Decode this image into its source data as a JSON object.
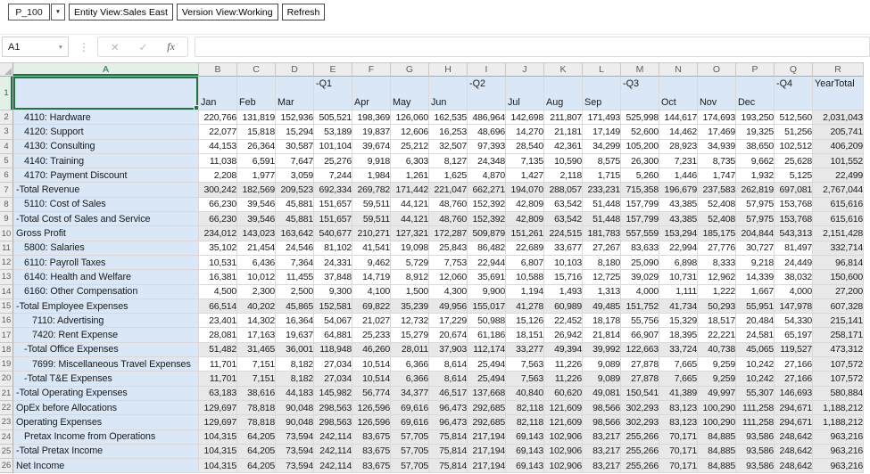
{
  "toolbar": {
    "pov": {
      "value": "P_100",
      "dropdown_icon": "▼"
    },
    "entity_button": "Entity View:Sales East",
    "version_button": "Version View:Working",
    "refresh_button": "Refresh"
  },
  "formula_bar": {
    "name_box_value": "A1",
    "name_dropdown_icon": "▼",
    "cancel_icon": "✕",
    "enter_icon": "✓",
    "fx_icon": "fx",
    "input_value": ""
  },
  "colors": {
    "selection_green": "#217346",
    "member_fill_blue": "#D9E7F6",
    "total_fill_gray": "#E8E8E8",
    "gridline": "#D9D9D9"
  },
  "grid": {
    "column_letters": [
      "A",
      "B",
      "C",
      "D",
      "E",
      "F",
      "G",
      "H",
      "I",
      "J",
      "K",
      "L",
      "M",
      "N",
      "O",
      "P",
      "Q",
      "R"
    ],
    "header_row": {
      "row_number": "1",
      "cells": [
        {
          "col": "B",
          "text": "Jan",
          "valign": "bottom"
        },
        {
          "col": "C",
          "text": "Feb",
          "valign": "bottom"
        },
        {
          "col": "D",
          "text": "Mar",
          "valign": "bottom"
        },
        {
          "col": "E",
          "text": "-Q1",
          "valign": "top"
        },
        {
          "col": "F",
          "text": "Apr",
          "valign": "bottom"
        },
        {
          "col": "G",
          "text": "May",
          "valign": "bottom"
        },
        {
          "col": "H",
          "text": "Jun",
          "valign": "bottom"
        },
        {
          "col": "I",
          "text": "-Q2",
          "valign": "top"
        },
        {
          "col": "J",
          "text": "Jul",
          "valign": "bottom"
        },
        {
          "col": "K",
          "text": "Aug",
          "valign": "bottom"
        },
        {
          "col": "L",
          "text": "Sep",
          "valign": "bottom"
        },
        {
          "col": "M",
          "text": "-Q3",
          "valign": "top"
        },
        {
          "col": "N",
          "text": "Oct",
          "valign": "bottom"
        },
        {
          "col": "O",
          "text": "Nov",
          "valign": "bottom"
        },
        {
          "col": "P",
          "text": "Dec",
          "valign": "bottom"
        },
        {
          "col": "Q",
          "text": "-Q4",
          "valign": "top"
        },
        {
          "col": "R",
          "text": "YearTotal",
          "valign": "top"
        }
      ]
    },
    "rows": [
      {
        "n": "2",
        "label": "4110: Hardware",
        "indent": 1,
        "total": false,
        "values": [
          "220,766",
          "131,819",
          "152,936",
          "505,521",
          "198,369",
          "126,060",
          "162,535",
          "486,964",
          "142,698",
          "211,807",
          "171,493",
          "525,998",
          "144,617",
          "174,693",
          "193,250",
          "512,560",
          "2,031,043"
        ]
      },
      {
        "n": "3",
        "label": "4120: Support",
        "indent": 1,
        "total": false,
        "values": [
          "22,077",
          "15,818",
          "15,294",
          "53,189",
          "19,837",
          "12,606",
          "16,253",
          "48,696",
          "14,270",
          "21,181",
          "17,149",
          "52,600",
          "14,462",
          "17,469",
          "19,325",
          "51,256",
          "205,741"
        ]
      },
      {
        "n": "4",
        "label": "4130: Consulting",
        "indent": 1,
        "total": false,
        "values": [
          "44,153",
          "26,364",
          "30,587",
          "101,104",
          "39,674",
          "25,212",
          "32,507",
          "97,393",
          "28,540",
          "42,361",
          "34,299",
          "105,200",
          "28,923",
          "34,939",
          "38,650",
          "102,512",
          "406,209"
        ]
      },
      {
        "n": "5",
        "label": "4140: Training",
        "indent": 1,
        "total": false,
        "values": [
          "11,038",
          "6,591",
          "7,647",
          "25,276",
          "9,918",
          "6,303",
          "8,127",
          "24,348",
          "7,135",
          "10,590",
          "8,575",
          "26,300",
          "7,231",
          "8,735",
          "9,662",
          "25,628",
          "101,552"
        ]
      },
      {
        "n": "6",
        "label": "4170: Payment Discount",
        "indent": 1,
        "total": false,
        "values": [
          "2,208",
          "1,977",
          "3,059",
          "7,244",
          "1,984",
          "1,261",
          "1,625",
          "4,870",
          "1,427",
          "2,118",
          "1,715",
          "5,260",
          "1,446",
          "1,747",
          "1,932",
          "5,125",
          "22,499"
        ]
      },
      {
        "n": "7",
        "label": "-Total Revenue",
        "indent": 0,
        "total": true,
        "values": [
          "300,242",
          "182,569",
          "209,523",
          "692,334",
          "269,782",
          "171,442",
          "221,047",
          "662,271",
          "194,070",
          "288,057",
          "233,231",
          "715,358",
          "196,679",
          "237,583",
          "262,819",
          "697,081",
          "2,767,044"
        ]
      },
      {
        "n": "8",
        "label": "5110: Cost of Sales",
        "indent": 1,
        "total": false,
        "values": [
          "66,230",
          "39,546",
          "45,881",
          "151,657",
          "59,511",
          "44,121",
          "48,760",
          "152,392",
          "42,809",
          "63,542",
          "51,448",
          "157,799",
          "43,385",
          "52,408",
          "57,975",
          "153,768",
          "615,616"
        ]
      },
      {
        "n": "9",
        "label": "-Total Cost of Sales and Service",
        "indent": 0,
        "total": true,
        "values": [
          "66,230",
          "39,546",
          "45,881",
          "151,657",
          "59,511",
          "44,121",
          "48,760",
          "152,392",
          "42,809",
          "63,542",
          "51,448",
          "157,799",
          "43,385",
          "52,408",
          "57,975",
          "153,768",
          "615,616"
        ]
      },
      {
        "n": "10",
        "label": "Gross Profit",
        "indent": 0,
        "total": true,
        "values": [
          "234,012",
          "143,023",
          "163,642",
          "540,677",
          "210,271",
          "127,321",
          "172,287",
          "509,879",
          "151,261",
          "224,515",
          "181,783",
          "557,559",
          "153,294",
          "185,175",
          "204,844",
          "543,313",
          "2,151,428"
        ]
      },
      {
        "n": "11",
        "label": "5800: Salaries",
        "indent": 1,
        "total": false,
        "values": [
          "35,102",
          "21,454",
          "24,546",
          "81,102",
          "41,541",
          "19,098",
          "25,843",
          "86,482",
          "22,689",
          "33,677",
          "27,267",
          "83,633",
          "22,994",
          "27,776",
          "30,727",
          "81,497",
          "332,714"
        ]
      },
      {
        "n": "12",
        "label": "6110: Payroll Taxes",
        "indent": 1,
        "total": false,
        "values": [
          "10,531",
          "6,436",
          "7,364",
          "24,331",
          "9,462",
          "5,729",
          "7,753",
          "22,944",
          "6,807",
          "10,103",
          "8,180",
          "25,090",
          "6,898",
          "8,333",
          "9,218",
          "24,449",
          "96,814"
        ]
      },
      {
        "n": "13",
        "label": "6140: Health and Welfare",
        "indent": 1,
        "total": false,
        "values": [
          "16,381",
          "10,012",
          "11,455",
          "37,848",
          "14,719",
          "8,912",
          "12,060",
          "35,691",
          "10,588",
          "15,716",
          "12,725",
          "39,029",
          "10,731",
          "12,962",
          "14,339",
          "38,032",
          "150,600"
        ]
      },
      {
        "n": "14",
        "label": "6160: Other Compensation",
        "indent": 1,
        "total": false,
        "values": [
          "4,500",
          "2,300",
          "2,500",
          "9,300",
          "4,100",
          "1,500",
          "4,300",
          "9,900",
          "1,194",
          "1,493",
          "1,313",
          "4,000",
          "1,111",
          "1,222",
          "1,667",
          "4,000",
          "27,200"
        ]
      },
      {
        "n": "15",
        "label": "-Total Employee Expenses",
        "indent": 0,
        "total": true,
        "values": [
          "66,514",
          "40,202",
          "45,865",
          "152,581",
          "69,822",
          "35,239",
          "49,956",
          "155,017",
          "41,278",
          "60,989",
          "49,485",
          "151,752",
          "41,734",
          "50,293",
          "55,951",
          "147,978",
          "607,328"
        ]
      },
      {
        "n": "16",
        "label": "7110: Advertising",
        "indent": 2,
        "total": false,
        "values": [
          "23,401",
          "14,302",
          "16,364",
          "54,067",
          "21,027",
          "12,732",
          "17,229",
          "50,988",
          "15,126",
          "22,452",
          "18,178",
          "55,756",
          "15,329",
          "18,517",
          "20,484",
          "54,330",
          "215,141"
        ]
      },
      {
        "n": "17",
        "label": "7420: Rent Expense",
        "indent": 2,
        "total": false,
        "values": [
          "28,081",
          "17,163",
          "19,637",
          "64,881",
          "25,233",
          "15,279",
          "20,674",
          "61,186",
          "18,151",
          "26,942",
          "21,814",
          "66,907",
          "18,395",
          "22,221",
          "24,581",
          "65,197",
          "258,171"
        ]
      },
      {
        "n": "18",
        "label": "-Total Office Expenses",
        "indent": 1,
        "total": true,
        "values": [
          "51,482",
          "31,465",
          "36,001",
          "118,948",
          "46,260",
          "28,011",
          "37,903",
          "112,174",
          "33,277",
          "49,394",
          "39,992",
          "122,663",
          "33,724",
          "40,738",
          "45,065",
          "119,527",
          "473,312"
        ]
      },
      {
        "n": "19",
        "label": "7699: Miscellaneous Travel Expenses",
        "indent": 2,
        "total": false,
        "values": [
          "11,701",
          "7,151",
          "8,182",
          "27,034",
          "10,514",
          "6,366",
          "8,614",
          "25,494",
          "7,563",
          "11,226",
          "9,089",
          "27,878",
          "7,665",
          "9,259",
          "10,242",
          "27,166",
          "107,572"
        ]
      },
      {
        "n": "20",
        "label": "-Total T&E Expenses",
        "indent": 1,
        "total": true,
        "values": [
          "11,701",
          "7,151",
          "8,182",
          "27,034",
          "10,514",
          "6,366",
          "8,614",
          "25,494",
          "7,563",
          "11,226",
          "9,089",
          "27,878",
          "7,665",
          "9,259",
          "10,242",
          "27,166",
          "107,572"
        ]
      },
      {
        "n": "21",
        "label": "-Total Operating Expenses",
        "indent": 0,
        "total": true,
        "values": [
          "63,183",
          "38,616",
          "44,183",
          "145,982",
          "56,774",
          "34,377",
          "46,517",
          "137,668",
          "40,840",
          "60,620",
          "49,081",
          "150,541",
          "41,389",
          "49,997",
          "55,307",
          "146,693",
          "580,884"
        ]
      },
      {
        "n": "22",
        "label": "OpEx before Allocations",
        "indent": 0,
        "total": true,
        "values": [
          "129,697",
          "78,818",
          "90,048",
          "298,563",
          "126,596",
          "69,616",
          "96,473",
          "292,685",
          "82,118",
          "121,609",
          "98,566",
          "302,293",
          "83,123",
          "100,290",
          "111,258",
          "294,671",
          "1,188,212"
        ]
      },
      {
        "n": "23",
        "label": "Operating Expenses",
        "indent": 0,
        "total": true,
        "values": [
          "129,697",
          "78,818",
          "90,048",
          "298,563",
          "126,596",
          "69,616",
          "96,473",
          "292,685",
          "82,118",
          "121,609",
          "98,566",
          "302,293",
          "83,123",
          "100,290",
          "111,258",
          "294,671",
          "1,188,212"
        ]
      },
      {
        "n": "24",
        "label": "Pretax Income from Operations",
        "indent": 1,
        "total": true,
        "values": [
          "104,315",
          "64,205",
          "73,594",
          "242,114",
          "83,675",
          "57,705",
          "75,814",
          "217,194",
          "69,143",
          "102,906",
          "83,217",
          "255,266",
          "70,171",
          "84,885",
          "93,586",
          "248,642",
          "963,216"
        ]
      },
      {
        "n": "25",
        "label": "-Total Pretax Income",
        "indent": 0,
        "total": true,
        "values": [
          "104,315",
          "64,205",
          "73,594",
          "242,114",
          "83,675",
          "57,705",
          "75,814",
          "217,194",
          "69,143",
          "102,906",
          "83,217",
          "255,266",
          "70,171",
          "84,885",
          "93,586",
          "248,642",
          "963,216"
        ]
      },
      {
        "n": "26",
        "label": "Net Income",
        "indent": 0,
        "total": true,
        "values": [
          "104,315",
          "64,205",
          "73,594",
          "242,114",
          "83,675",
          "57,705",
          "75,814",
          "217,194",
          "69,143",
          "102,906",
          "83,217",
          "255,266",
          "70,171",
          "84,885",
          "93,586",
          "248,642",
          "963,216"
        ]
      }
    ]
  }
}
